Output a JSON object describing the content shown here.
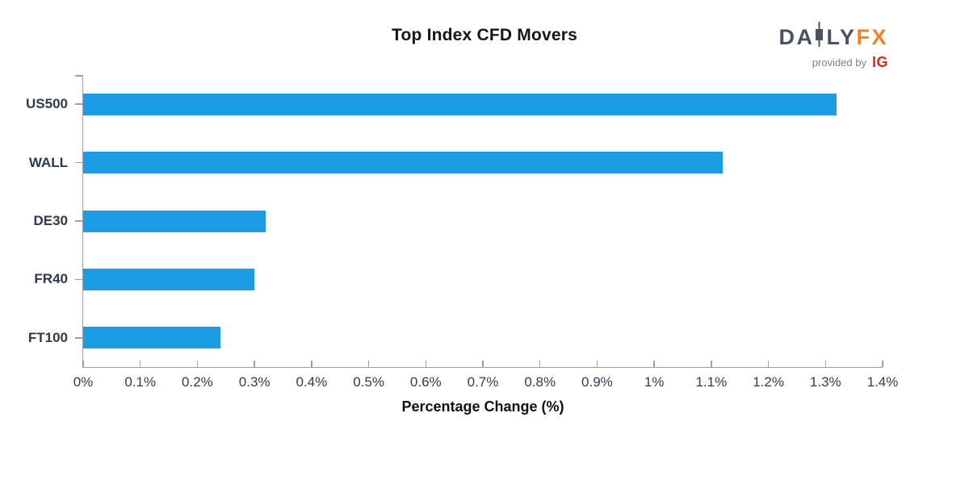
{
  "logo": {
    "brand_part1": "DA",
    "brand_part2": "LY",
    "brand_part3": "FX",
    "tagline": "provided by",
    "provider": "IG",
    "colors": {
      "brand": "#4a5260",
      "fx": "#f68120",
      "tagline": "#7b818c",
      "provider": "#e1251b"
    }
  },
  "chart_data": {
    "type": "bar",
    "orientation": "horizontal",
    "title": "Top Index CFD Movers",
    "xlabel": "Percentage Change (%)",
    "ylabel": "",
    "categories": [
      "US500",
      "WALL",
      "DE30",
      "FR40",
      "FT100"
    ],
    "values": [
      1.32,
      1.12,
      0.32,
      0.3,
      0.24
    ],
    "xlim": [
      0,
      1.4
    ],
    "xticks": [
      {
        "value": 0,
        "label": "0%"
      },
      {
        "value": 0.1,
        "label": "0.1%"
      },
      {
        "value": 0.2,
        "label": "0.2%"
      },
      {
        "value": 0.3,
        "label": "0.3%"
      },
      {
        "value": 0.4,
        "label": "0.4%"
      },
      {
        "value": 0.5,
        "label": "0.5%"
      },
      {
        "value": 0.6,
        "label": "0.6%"
      },
      {
        "value": 0.7,
        "label": "0.7%"
      },
      {
        "value": 0.8,
        "label": "0.8%"
      },
      {
        "value": 0.9,
        "label": "0.9%"
      },
      {
        "value": 1,
        "label": "1%"
      },
      {
        "value": 1.1,
        "label": "1.1%"
      },
      {
        "value": 1.2,
        "label": "1.2%"
      },
      {
        "value": 1.3,
        "label": "1.3%"
      },
      {
        "value": 1.4,
        "label": "1.4%"
      }
    ],
    "grid": false,
    "legend": "none",
    "colors": {
      "bar": "#1c9ce4",
      "axis": "#9e9e9e",
      "tick_label": "#333d4d",
      "category_label": "#2e3a47",
      "title": "#161616",
      "xlabel": "#111111"
    }
  }
}
